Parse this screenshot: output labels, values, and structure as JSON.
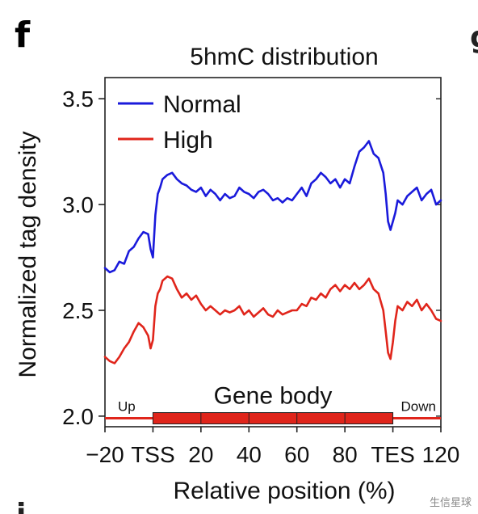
{
  "panel": {
    "letter": "f",
    "next_letter": "g",
    "below_letter": "i"
  },
  "watermark": "生信星球",
  "chart_data": {
    "type": "line",
    "title": "5hmC distribution",
    "xlabel": "Relative position (%)",
    "ylabel": "Normalized tag density",
    "xlim": [
      -20,
      120
    ],
    "ylim": [
      1.95,
      3.6
    ],
    "x_ticks": [
      {
        "value": -20,
        "label": "−20"
      },
      {
        "value": 0,
        "label": "TSS"
      },
      {
        "value": 20,
        "label": "20"
      },
      {
        "value": 40,
        "label": "40"
      },
      {
        "value": 60,
        "label": "60"
      },
      {
        "value": 80,
        "label": "80"
      },
      {
        "value": 100,
        "label": "TES"
      },
      {
        "value": 120,
        "label": "120"
      }
    ],
    "y_ticks": [
      {
        "value": 2.0,
        "label": "2.0"
      },
      {
        "value": 2.5,
        "label": "2.5"
      },
      {
        "value": 3.0,
        "label": "3.0"
      },
      {
        "value": 3.5,
        "label": "3.5"
      }
    ],
    "legend_position": "top-left",
    "gene_structure": {
      "up_label": "Up",
      "body_label": "Gene body",
      "down_label": "Down",
      "body_start": 0,
      "body_end": 100,
      "color": "#e0251b"
    },
    "series": [
      {
        "name": "Normal",
        "color": "#1a1adb",
        "x": [
          -20,
          -18,
          -16,
          -14,
          -12,
          -10,
          -8,
          -6,
          -4,
          -2,
          -1,
          0,
          1,
          2,
          3,
          4,
          6,
          8,
          10,
          12,
          14,
          16,
          18,
          20,
          22,
          24,
          26,
          28,
          30,
          32,
          34,
          36,
          38,
          40,
          42,
          44,
          46,
          48,
          50,
          52,
          54,
          56,
          58,
          60,
          62,
          64,
          66,
          68,
          70,
          72,
          74,
          76,
          78,
          80,
          82,
          84,
          86,
          88,
          90,
          92,
          94,
          96,
          97,
          98,
          99,
          100,
          101,
          102,
          104,
          106,
          108,
          110,
          112,
          114,
          116,
          118,
          120
        ],
        "values": [
          2.7,
          2.68,
          2.69,
          2.73,
          2.72,
          2.78,
          2.8,
          2.84,
          2.87,
          2.86,
          2.79,
          2.75,
          2.95,
          3.05,
          3.08,
          3.12,
          3.14,
          3.15,
          3.12,
          3.1,
          3.09,
          3.07,
          3.06,
          3.08,
          3.04,
          3.07,
          3.05,
          3.02,
          3.05,
          3.03,
          3.04,
          3.08,
          3.06,
          3.05,
          3.03,
          3.06,
          3.07,
          3.05,
          3.02,
          3.03,
          3.01,
          3.03,
          3.02,
          3.05,
          3.08,
          3.04,
          3.1,
          3.12,
          3.15,
          3.13,
          3.1,
          3.12,
          3.08,
          3.12,
          3.1,
          3.18,
          3.25,
          3.27,
          3.3,
          3.24,
          3.22,
          3.15,
          3.05,
          2.92,
          2.88,
          2.92,
          2.96,
          3.02,
          3.0,
          3.04,
          3.06,
          3.08,
          3.02,
          3.05,
          3.07,
          3.0,
          3.02
        ]
      },
      {
        "name": "High",
        "color": "#e0251b",
        "x": [
          -20,
          -18,
          -16,
          -14,
          -12,
          -10,
          -8,
          -6,
          -4,
          -2,
          -1,
          0,
          1,
          2,
          3,
          4,
          6,
          8,
          10,
          12,
          14,
          16,
          18,
          20,
          22,
          24,
          26,
          28,
          30,
          32,
          34,
          36,
          38,
          40,
          42,
          44,
          46,
          48,
          50,
          52,
          54,
          56,
          58,
          60,
          62,
          64,
          66,
          68,
          70,
          72,
          74,
          76,
          78,
          80,
          82,
          84,
          86,
          88,
          90,
          92,
          94,
          96,
          97,
          98,
          99,
          100,
          101,
          102,
          104,
          106,
          108,
          110,
          112,
          114,
          116,
          118,
          120
        ],
        "values": [
          2.28,
          2.26,
          2.25,
          2.28,
          2.32,
          2.35,
          2.4,
          2.44,
          2.42,
          2.38,
          2.32,
          2.36,
          2.52,
          2.58,
          2.6,
          2.64,
          2.66,
          2.65,
          2.6,
          2.56,
          2.58,
          2.55,
          2.57,
          2.53,
          2.5,
          2.52,
          2.5,
          2.48,
          2.5,
          2.49,
          2.5,
          2.52,
          2.48,
          2.5,
          2.47,
          2.49,
          2.51,
          2.48,
          2.47,
          2.5,
          2.48,
          2.49,
          2.5,
          2.5,
          2.53,
          2.52,
          2.56,
          2.55,
          2.58,
          2.56,
          2.6,
          2.62,
          2.59,
          2.62,
          2.6,
          2.63,
          2.6,
          2.62,
          2.65,
          2.6,
          2.58,
          2.5,
          2.4,
          2.3,
          2.27,
          2.35,
          2.45,
          2.52,
          2.5,
          2.54,
          2.52,
          2.55,
          2.5,
          2.53,
          2.5,
          2.46,
          2.45
        ]
      }
    ]
  }
}
